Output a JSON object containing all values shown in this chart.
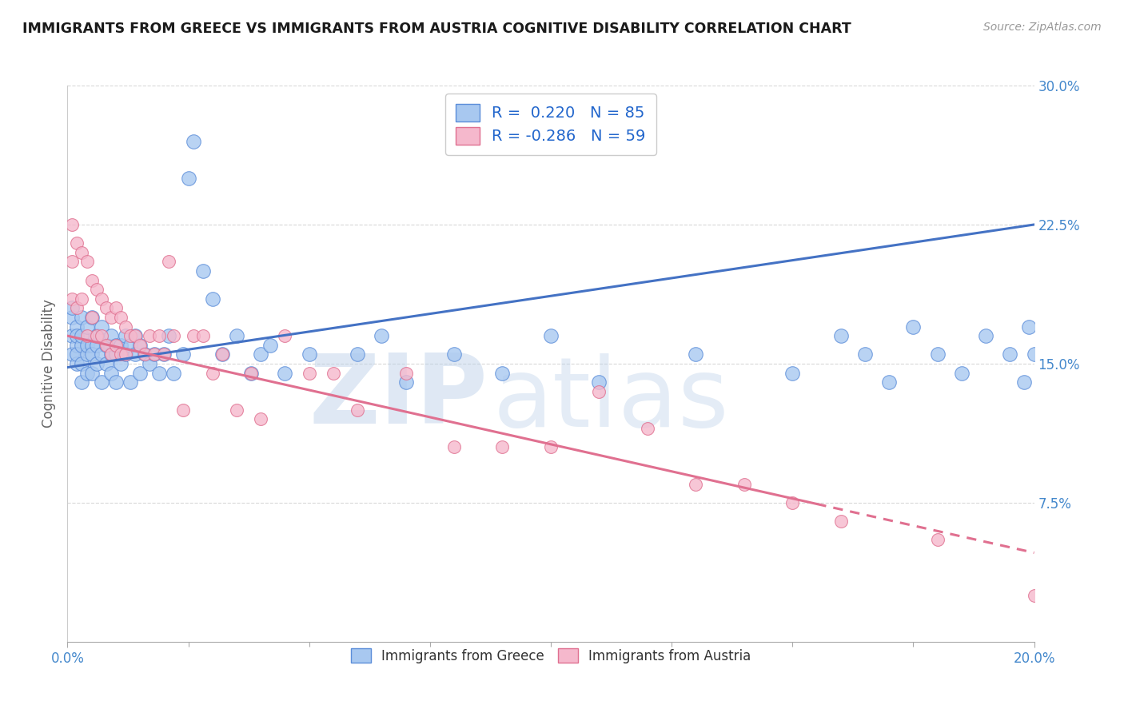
{
  "title": "IMMIGRANTS FROM GREECE VS IMMIGRANTS FROM AUSTRIA COGNITIVE DISABILITY CORRELATION CHART",
  "source": "Source: ZipAtlas.com",
  "ylabel": "Cognitive Disability",
  "xlim": [
    0.0,
    0.2
  ],
  "ylim": [
    0.0,
    0.3
  ],
  "yticks": [
    0.075,
    0.15,
    0.225,
    0.3
  ],
  "ytick_labels": [
    "7.5%",
    "15.0%",
    "22.5%",
    "30.0%"
  ],
  "xtick_left_label": "0.0%",
  "xtick_right_label": "20.0%",
  "series1_name": "Immigrants from Greece",
  "series1_color": "#A8C8F0",
  "series1_edge_color": "#5B8DD9",
  "series1_R": 0.22,
  "series1_N": 85,
  "series1_line_color": "#4472C4",
  "series2_name": "Immigrants from Austria",
  "series2_color": "#F5B8CC",
  "series2_edge_color": "#E07090",
  "series2_R": -0.286,
  "series2_N": 59,
  "series2_line_color": "#E07090",
  "watermark_zip": "ZIP",
  "watermark_atlas": "atlas",
  "background_color": "#FFFFFF",
  "grid_color": "#C8C8C8",
  "title_color": "#1A1A1A",
  "axis_label_color": "#666666",
  "tick_label_color": "#4488CC",
  "legend_R_color": "#2266CC",
  "legend_N_color": "#2266CC",
  "line1_x0": 0.0,
  "line1_y0": 0.148,
  "line1_x1": 0.2,
  "line1_y1": 0.225,
  "line2_x0": 0.0,
  "line2_y0": 0.165,
  "line2_x1": 0.2,
  "line2_y1": 0.048,
  "line2_solid_end_x": 0.155,
  "series1_x": [
    0.001,
    0.001,
    0.001,
    0.001,
    0.002,
    0.002,
    0.002,
    0.002,
    0.002,
    0.003,
    0.003,
    0.003,
    0.003,
    0.003,
    0.004,
    0.004,
    0.004,
    0.004,
    0.005,
    0.005,
    0.005,
    0.005,
    0.006,
    0.006,
    0.006,
    0.007,
    0.007,
    0.007,
    0.008,
    0.008,
    0.009,
    0.009,
    0.009,
    0.01,
    0.01,
    0.01,
    0.011,
    0.011,
    0.012,
    0.012,
    0.013,
    0.013,
    0.014,
    0.014,
    0.015,
    0.015,
    0.016,
    0.017,
    0.018,
    0.019,
    0.02,
    0.021,
    0.022,
    0.024,
    0.025,
    0.026,
    0.028,
    0.03,
    0.032,
    0.035,
    0.038,
    0.04,
    0.042,
    0.045,
    0.05,
    0.06,
    0.065,
    0.07,
    0.08,
    0.09,
    0.1,
    0.11,
    0.13,
    0.15,
    0.16,
    0.165,
    0.17,
    0.175,
    0.18,
    0.185,
    0.19,
    0.195,
    0.198,
    0.199,
    0.2
  ],
  "series1_y": [
    0.155,
    0.165,
    0.175,
    0.18,
    0.15,
    0.16,
    0.17,
    0.155,
    0.165,
    0.14,
    0.16,
    0.175,
    0.15,
    0.165,
    0.155,
    0.17,
    0.145,
    0.16,
    0.16,
    0.145,
    0.175,
    0.155,
    0.16,
    0.15,
    0.165,
    0.155,
    0.17,
    0.14,
    0.16,
    0.15,
    0.155,
    0.165,
    0.145,
    0.155,
    0.16,
    0.14,
    0.16,
    0.15,
    0.155,
    0.165,
    0.14,
    0.16,
    0.155,
    0.165,
    0.145,
    0.16,
    0.155,
    0.15,
    0.155,
    0.145,
    0.155,
    0.165,
    0.145,
    0.155,
    0.25,
    0.27,
    0.2,
    0.185,
    0.155,
    0.165,
    0.145,
    0.155,
    0.16,
    0.145,
    0.155,
    0.155,
    0.165,
    0.14,
    0.155,
    0.145,
    0.165,
    0.14,
    0.155,
    0.145,
    0.165,
    0.155,
    0.14,
    0.17,
    0.155,
    0.145,
    0.165,
    0.155,
    0.14,
    0.17,
    0.155
  ],
  "series2_x": [
    0.001,
    0.001,
    0.001,
    0.002,
    0.002,
    0.003,
    0.003,
    0.004,
    0.004,
    0.005,
    0.005,
    0.006,
    0.006,
    0.007,
    0.007,
    0.008,
    0.008,
    0.009,
    0.009,
    0.01,
    0.01,
    0.011,
    0.011,
    0.012,
    0.012,
    0.013,
    0.014,
    0.015,
    0.016,
    0.017,
    0.018,
    0.019,
    0.02,
    0.021,
    0.022,
    0.024,
    0.026,
    0.028,
    0.03,
    0.032,
    0.035,
    0.038,
    0.04,
    0.045,
    0.05,
    0.055,
    0.06,
    0.07,
    0.08,
    0.09,
    0.1,
    0.11,
    0.12,
    0.13,
    0.14,
    0.15,
    0.16,
    0.18,
    0.2
  ],
  "series2_y": [
    0.225,
    0.205,
    0.185,
    0.215,
    0.18,
    0.21,
    0.185,
    0.205,
    0.165,
    0.195,
    0.175,
    0.19,
    0.165,
    0.185,
    0.165,
    0.18,
    0.16,
    0.175,
    0.155,
    0.18,
    0.16,
    0.175,
    0.155,
    0.17,
    0.155,
    0.165,
    0.165,
    0.16,
    0.155,
    0.165,
    0.155,
    0.165,
    0.155,
    0.205,
    0.165,
    0.125,
    0.165,
    0.165,
    0.145,
    0.155,
    0.125,
    0.145,
    0.12,
    0.165,
    0.145,
    0.145,
    0.125,
    0.145,
    0.105,
    0.105,
    0.105,
    0.135,
    0.115,
    0.085,
    0.085,
    0.075,
    0.065,
    0.055,
    0.025
  ]
}
